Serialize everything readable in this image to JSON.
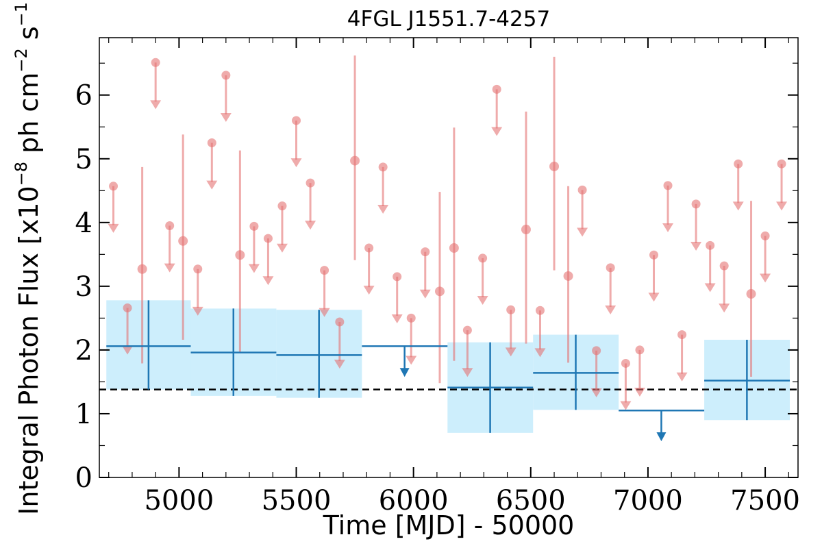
{
  "chart_data": {
    "type": "scatter",
    "title": "4FGL J1551.7-4257",
    "xlabel": "Time [MJD] - 50000",
    "ylabel": "Integral Photon Flux [x10$^{-8}$ ph cm$^{-2}$ s$^{-1}$]",
    "ylabel_parts": {
      "base": "Integral Photon Flux [x10",
      "exp1": "−8",
      "mid1": " ph cm",
      "exp2": "−2",
      "mid2": " s",
      "exp3": "−1",
      "end": "]"
    },
    "xlim": [
      4660,
      7640
    ],
    "ylim": [
      0,
      6.9
    ],
    "xticks": [
      5000,
      5500,
      6000,
      6500,
      7000,
      7500
    ],
    "yticks": [
      0,
      1,
      2,
      3,
      4,
      5,
      6
    ],
    "grid": false,
    "reference_line": {
      "y": 1.38,
      "style": "dashed",
      "color": "#000000"
    },
    "colors": {
      "short_bins": "#e57373",
      "long_bins": "#1f77b4",
      "long_bins_band": "#cdeefc"
    },
    "series": [
      {
        "kind": "short_bin_detections",
        "points": [
          {
            "x": 4843,
            "y": 3.27,
            "ylo": 1.79,
            "yhi": 4.87
          },
          {
            "x": 5017,
            "y": 3.71,
            "ylo": 2.16,
            "yhi": 5.38
          },
          {
            "x": 5260,
            "y": 3.49,
            "ylo": 1.96,
            "yhi": 5.13
          },
          {
            "x": 5750,
            "y": 4.97,
            "ylo": 3.41,
            "yhi": 6.62
          },
          {
            "x": 6112,
            "y": 2.92,
            "ylo": 1.48,
            "yhi": 4.48
          },
          {
            "x": 6173,
            "y": 3.6,
            "ylo": 1.83,
            "yhi": 5.49
          },
          {
            "x": 6480,
            "y": 3.89,
            "ylo": 2.1,
            "yhi": 5.74
          },
          {
            "x": 6600,
            "y": 4.88,
            "ylo": 3.25,
            "yhi": 6.6
          },
          {
            "x": 6660,
            "y": 3.16,
            "ylo": 1.8,
            "yhi": 4.57
          },
          {
            "x": 7440,
            "y": 2.88,
            "ylo": 1.58,
            "yhi": 4.34
          }
        ]
      },
      {
        "kind": "short_bin_upper_limits",
        "points": [
          {
            "x": 4720,
            "y": 4.57
          },
          {
            "x": 4780,
            "y": 2.66
          },
          {
            "x": 4900,
            "y": 6.51
          },
          {
            "x": 4960,
            "y": 3.95
          },
          {
            "x": 5080,
            "y": 3.27
          },
          {
            "x": 5140,
            "y": 5.25
          },
          {
            "x": 5200,
            "y": 6.31
          },
          {
            "x": 5320,
            "y": 3.94
          },
          {
            "x": 5380,
            "y": 3.75
          },
          {
            "x": 5440,
            "y": 4.26
          },
          {
            "x": 5500,
            "y": 5.6
          },
          {
            "x": 5560,
            "y": 4.62
          },
          {
            "x": 5620,
            "y": 3.25
          },
          {
            "x": 5685,
            "y": 2.44
          },
          {
            "x": 5810,
            "y": 3.6
          },
          {
            "x": 5870,
            "y": 4.87
          },
          {
            "x": 5930,
            "y": 3.15
          },
          {
            "x": 5990,
            "y": 2.5
          },
          {
            "x": 6050,
            "y": 3.54
          },
          {
            "x": 6230,
            "y": 2.31
          },
          {
            "x": 6295,
            "y": 3.44
          },
          {
            "x": 6355,
            "y": 6.09
          },
          {
            "x": 6415,
            "y": 2.63
          },
          {
            "x": 6540,
            "y": 2.62
          },
          {
            "x": 6720,
            "y": 4.51
          },
          {
            "x": 6780,
            "y": 1.99
          },
          {
            "x": 6840,
            "y": 3.29
          },
          {
            "x": 6905,
            "y": 1.79
          },
          {
            "x": 6965,
            "y": 2.0
          },
          {
            "x": 7025,
            "y": 3.49
          },
          {
            "x": 7085,
            "y": 4.58
          },
          {
            "x": 7145,
            "y": 2.24
          },
          {
            "x": 7205,
            "y": 4.29
          },
          {
            "x": 7265,
            "y": 3.64
          },
          {
            "x": 7325,
            "y": 3.32
          },
          {
            "x": 7385,
            "y": 4.92
          },
          {
            "x": 7500,
            "y": 3.79
          },
          {
            "x": 7570,
            "y": 4.92
          }
        ]
      },
      {
        "kind": "long_bin_detections",
        "bins": [
          {
            "x0": 4690,
            "x1": 5050,
            "xc": 4870,
            "y": 2.06,
            "ylo": 1.38,
            "yhi": 2.78
          },
          {
            "x0": 5050,
            "x1": 5415,
            "xc": 5232,
            "y": 1.96,
            "ylo": 1.28,
            "yhi": 2.65
          },
          {
            "x0": 5415,
            "x1": 5780,
            "xc": 5597,
            "y": 1.92,
            "ylo": 1.25,
            "yhi": 2.63
          },
          {
            "x0": 6145,
            "x1": 6510,
            "xc": 6327,
            "y": 1.41,
            "ylo": 0.7,
            "yhi": 2.12
          },
          {
            "x0": 6510,
            "x1": 6875,
            "xc": 6692,
            "y": 1.64,
            "ylo": 1.06,
            "yhi": 2.24
          },
          {
            "x0": 7240,
            "x1": 7605,
            "xc": 7422,
            "y": 1.52,
            "ylo": 0.9,
            "yhi": 2.16
          }
        ]
      },
      {
        "kind": "long_bin_upper_limits",
        "bins": [
          {
            "x0": 5780,
            "x1": 6145,
            "xc": 5962,
            "y": 2.06
          },
          {
            "x0": 6875,
            "x1": 7240,
            "xc": 7057,
            "y": 1.05
          }
        ]
      }
    ]
  }
}
